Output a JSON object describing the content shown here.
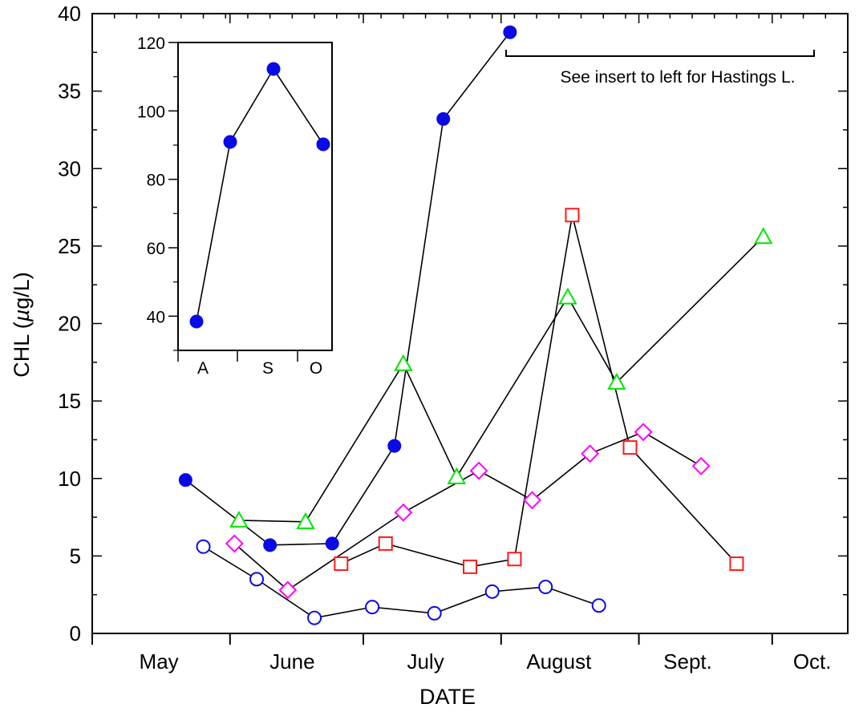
{
  "chart_data": [
    {
      "type": "line",
      "title": "",
      "xlabel": "DATE",
      "ylabel_prefix": "CHL (",
      "ylabel_mu": "µ",
      "ylabel_suffix": "g/L)",
      "ylim": [
        0,
        40
      ],
      "yticks": [
        0,
        5,
        10,
        15,
        20,
        25,
        30,
        35,
        40
      ],
      "x_units": "days since May 1",
      "month_labels": [
        {
          "label": "May",
          "x": 15
        },
        {
          "label": "June",
          "x": 45
        },
        {
          "label": "July",
          "x": 75
        },
        {
          "label": "August",
          "x": 105
        },
        {
          "label": "Sept.",
          "x": 134
        },
        {
          "label": "Oct.",
          "x": 162
        }
      ],
      "annotation": "See insert to left for Hastings L.",
      "series": [
        {
          "marker": "filled-circle",
          "color": "#0a0ae6",
          "points": [
            [
              21,
              9.9
            ],
            [
              40,
              5.7
            ],
            [
              54,
              5.8
            ],
            [
              68,
              12.1
            ],
            [
              79,
              33.2
            ],
            [
              94,
              38.8
            ]
          ]
        },
        {
          "marker": "triangle",
          "color": "#00e600",
          "points": [
            [
              33,
              7.3
            ],
            [
              48,
              7.2
            ],
            [
              70,
              17.4
            ],
            [
              82,
              10.1
            ],
            [
              107,
              21.7
            ],
            [
              118,
              16.2
            ],
            [
              151,
              25.6
            ]
          ]
        },
        {
          "marker": "square",
          "color": "#ff1a1a",
          "points": [
            [
              56,
              4.5
            ],
            [
              66,
              5.8
            ],
            [
              85,
              4.3
            ],
            [
              95,
              4.8
            ],
            [
              108,
              27.0
            ],
            [
              121,
              12.0
            ],
            [
              145,
              4.5
            ]
          ]
        },
        {
          "marker": "diamond",
          "color": "#ff00ff",
          "points": [
            [
              32,
              5.8
            ],
            [
              44,
              2.8
            ],
            [
              70,
              7.8
            ],
            [
              87,
              10.5
            ],
            [
              99,
              8.6
            ],
            [
              112,
              11.6
            ],
            [
              124,
              13.0
            ],
            [
              137,
              10.8
            ]
          ]
        },
        {
          "marker": "open-circle",
          "color": "#0a0ae6",
          "points": [
            [
              25,
              5.6
            ],
            [
              37,
              3.5
            ],
            [
              50,
              1.0
            ],
            [
              63,
              1.7
            ],
            [
              77,
              1.3
            ],
            [
              90,
              2.7
            ],
            [
              102,
              3.0
            ],
            [
              114,
              1.8
            ]
          ]
        }
      ]
    },
    {
      "type": "line",
      "title": "",
      "inset": true,
      "ylim": [
        30,
        120
      ],
      "yticks": [
        40,
        60,
        80,
        100,
        120
      ],
      "categories": [
        "A",
        "S",
        "O"
      ],
      "series": [
        {
          "marker": "filled-circle",
          "color": "#0a0ae6",
          "points": [
            [
              0.15,
              39
            ],
            [
              0.85,
              90
            ],
            [
              1.55,
              112
            ],
            [
              2.3,
              89.5
            ]
          ]
        }
      ]
    }
  ]
}
